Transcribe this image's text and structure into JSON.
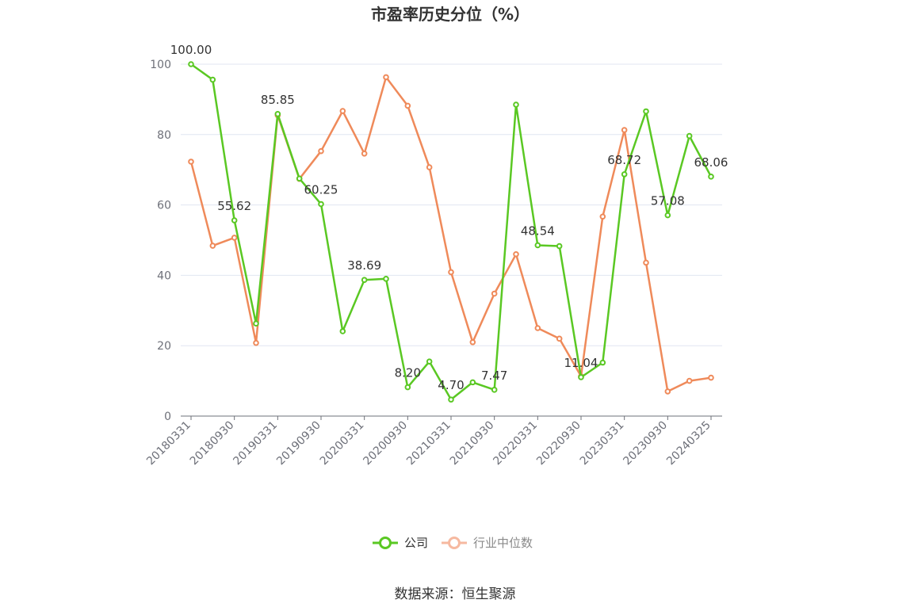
{
  "chart_data": {
    "type": "line",
    "title": "市盈率历史分位（%）",
    "xlabel": "",
    "ylabel": "",
    "ylim": [
      0,
      100
    ],
    "yticks": [
      0,
      20,
      40,
      60,
      80,
      100
    ],
    "grid": true,
    "legend_position": "bottom",
    "x_tick_labels": [
      "20180331",
      "20180930",
      "20190331",
      "20190930",
      "20200331",
      "20200930",
      "20210331",
      "20210930",
      "20220331",
      "20220930",
      "20230331",
      "20230930",
      "20240325"
    ],
    "series": [
      {
        "name": "公司",
        "color": "#5ac823",
        "values": [
          100.0,
          95.6,
          55.62,
          26.3,
          85.85,
          67.5,
          60.25,
          24.1,
          38.69,
          39.0,
          8.2,
          15.5,
          4.7,
          9.6,
          7.47,
          88.5,
          48.54,
          48.3,
          11.04,
          15.2,
          68.72,
          86.6,
          57.08,
          79.6,
          68.06
        ],
        "labels": {
          "0": "100.00",
          "2": "55.62",
          "4": "85.85",
          "6": "60.25",
          "8": "38.69",
          "10": "8.20",
          "12": "4.70",
          "14": "7.47",
          "16": "48.54",
          "18": "11.04",
          "20": "68.72",
          "22": "57.08",
          "24": "68.06"
        }
      },
      {
        "name": "行业中位数",
        "color": "#ef8a5a",
        "values": [
          72.3,
          48.4,
          50.7,
          20.8,
          85.5,
          67.4,
          75.3,
          86.7,
          74.6,
          96.3,
          88.2,
          70.7,
          40.9,
          21.0,
          34.8,
          46.0,
          25.0,
          22.0,
          11.3,
          56.7,
          81.3,
          43.6,
          7.0,
          10.0,
          10.9
        ]
      }
    ]
  },
  "source_text": "数据来源：恒生聚源"
}
